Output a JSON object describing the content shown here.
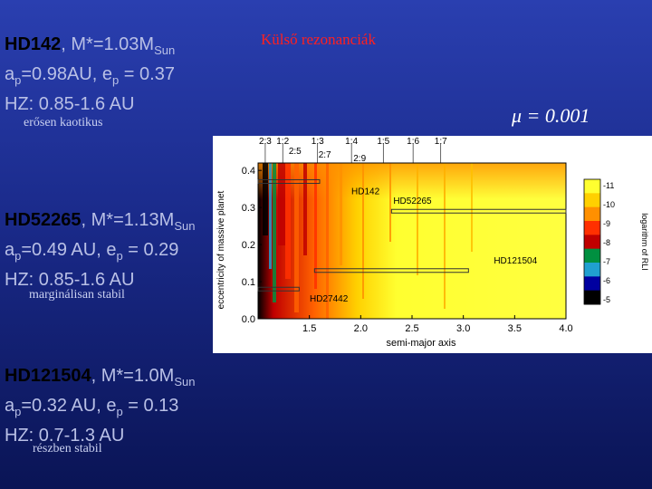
{
  "slide": {
    "title": "Külső rezonanciák",
    "mu_label": "μ = 0.001"
  },
  "stars": [
    {
      "name": "HD142",
      "mass_text": ", M*=1.03M",
      "mass_sub": "Sun",
      "orbit_a": "a",
      "orbit_a_sub": "p",
      "orbit_rest": "=0.98AU, e",
      "orbit_e_sub": "p",
      "orbit_e_val": " = 0.37",
      "hz": "HZ: 0.85-1.6 AU",
      "stability": "erősen kaotikus"
    },
    {
      "name": "HD52265",
      "mass_text": ", M*=1.13M",
      "mass_sub": "Sun",
      "orbit_a": "a",
      "orbit_a_sub": "p",
      "orbit_rest": "=0.49 AU, e",
      "orbit_e_sub": "p",
      "orbit_e_val": " = 0.29",
      "hz": "HZ: 0.85-1.6 AU",
      "stability": "marginálisan stabil"
    },
    {
      "name": "HD121504",
      "mass_text": ", M*=1.0M",
      "mass_sub": "Sun",
      "orbit_a": "a",
      "orbit_a_sub": "p",
      "orbit_rest": "=0.32 AU, e",
      "orbit_e_sub": "p",
      "orbit_e_val": " = 0.13",
      "hz": "HZ: 0.7-1.3 AU",
      "stability": "részben stabil"
    }
  ],
  "chart_data": {
    "type": "heatmap",
    "xlabel": "semi-major axis",
    "ylabel": "eccentricity of massive planet",
    "colorbar_label": "logarithm of RLI",
    "xlim": [
      1.0,
      4.0
    ],
    "ylim": [
      0.0,
      0.42
    ],
    "x_ticks": [
      "1.5",
      "2.0",
      "2.5",
      "3.0",
      "3.5",
      "4.0"
    ],
    "x_tick_values": [
      1.5,
      2.0,
      2.5,
      3.0,
      3.5,
      4.0
    ],
    "y_ticks": [
      "0.0",
      "0.1",
      "0.2",
      "0.3",
      "0.4"
    ],
    "y_tick_values": [
      0.0,
      0.1,
      0.2,
      0.3,
      0.4
    ],
    "colorbar_ticks": [
      "-11",
      "-10",
      "-9",
      "-8",
      "-7",
      "-6",
      "-5"
    ],
    "colorbar_colors": [
      "#ffff30",
      "#ffd000",
      "#ff9000",
      "#ff3000",
      "#c00000",
      "#009040",
      "#20a0d0",
      "#0000a0",
      "#000000"
    ],
    "resonances_top": [
      {
        "label": "2:3",
        "x": 1.07
      },
      {
        "label": "1:2",
        "x": 1.24
      },
      {
        "label": "1:3",
        "x": 1.58
      },
      {
        "label": "1:4",
        "x": 1.91
      },
      {
        "label": "1:5",
        "x": 2.22
      },
      {
        "label": "1:6",
        "x": 2.51
      },
      {
        "label": "1:7",
        "x": 2.78
      }
    ],
    "resonances_mid": [
      {
        "label": "2:5",
        "x": 1.36
      },
      {
        "label": "2:7",
        "x": 1.65
      },
      {
        "label": "2:9",
        "x": 1.99
      }
    ],
    "systems": [
      {
        "label": "HD142",
        "x_from": 1.0,
        "x_to": 1.6,
        "e": 0.37
      },
      {
        "label": "HD52265",
        "x_from": 2.3,
        "x_to": 4.0,
        "e": 0.29
      },
      {
        "label": "HD121504",
        "x_from": 1.55,
        "x_to": 3.05,
        "e": 0.13
      },
      {
        "label": "HD27442",
        "x_from": 1.0,
        "x_to": 1.4,
        "e": 0.08
      }
    ]
  }
}
